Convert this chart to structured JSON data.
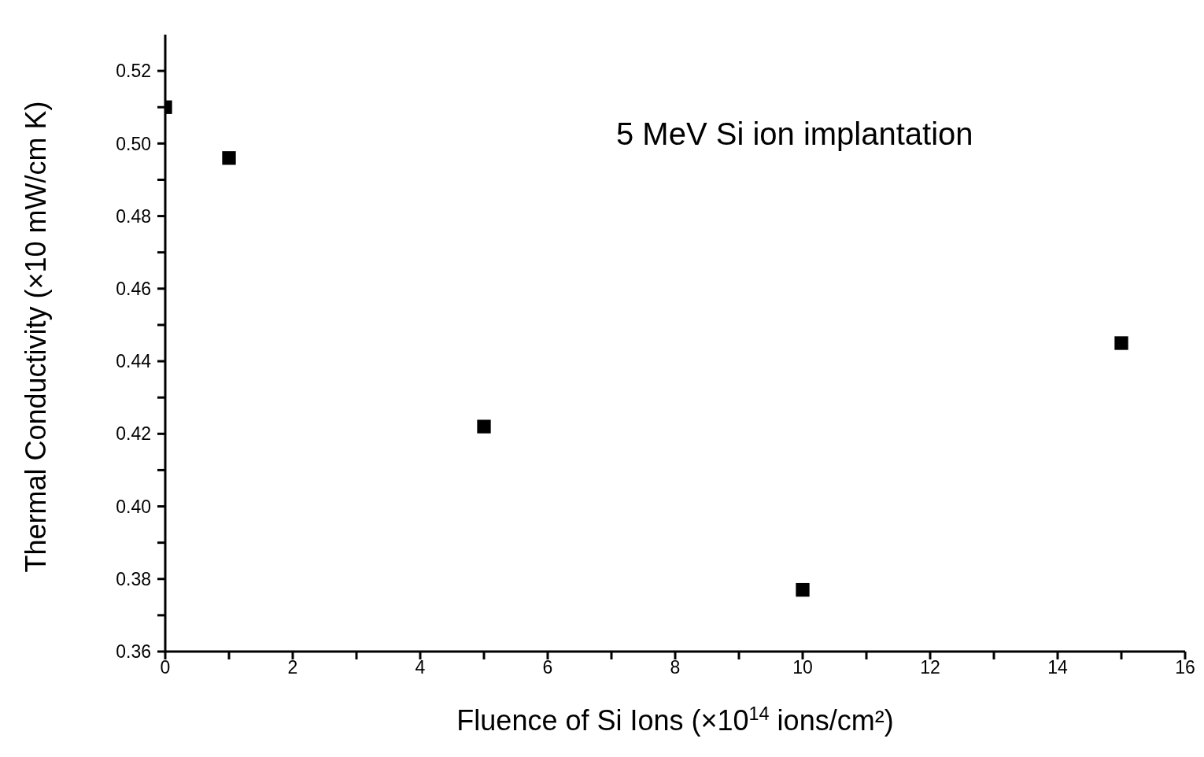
{
  "chart_data": {
    "type": "scatter",
    "xlabel": "Fluence of Si Ions (×10$^{14}$ ions/cm²)",
    "ylabel": "Thermal Conductivity (×10 mW/cm K)",
    "annotations": [
      "5 MeV Si ion implantation"
    ],
    "x": [
      0,
      1,
      5,
      10,
      15
    ],
    "series": [
      {
        "color": "#000000",
        "values": [
          0.51,
          0.496,
          0.422,
          0.377,
          0.445
        ]
      }
    ],
    "xlim": [
      0,
      16
    ],
    "xticks": [
      0,
      {
        "value": 1,
        "label": null
      },
      2,
      {
        "value": 3,
        "label": null
      },
      4,
      {
        "value": 5,
        "label": null
      },
      6,
      {
        "value": 7,
        "label": null
      },
      8,
      {
        "value": 9,
        "label": null
      },
      10,
      {
        "value": 11,
        "label": null
      },
      12,
      {
        "value": 13,
        "label": null
      },
      14,
      {
        "value": 15,
        "label": null
      },
      16
    ],
    "ylim": [
      0.36,
      0.53
    ],
    "yticks": [
      {
        "value": 0.36,
        "label": "0.36"
      },
      {
        "value": 0.37,
        "label": null
      },
      {
        "value": 0.38,
        "label": "0.38"
      },
      {
        "value": 0.39,
        "label": null
      },
      {
        "value": 0.4,
        "label": "0.40"
      },
      {
        "value": 0.41,
        "label": null
      },
      {
        "value": 0.42,
        "label": "0.42"
      },
      {
        "value": 0.43,
        "label": null
      },
      {
        "value": 0.44,
        "label": "0.44"
      },
      {
        "value": 0.45,
        "label": null
      },
      {
        "value": 0.46,
        "label": "0.46"
      },
      {
        "value": 0.47,
        "label": null
      },
      {
        "value": 0.48,
        "label": "0.48"
      },
      {
        "value": 0.49,
        "label": null
      },
      {
        "value": 0.5,
        "label": "0.50"
      },
      {
        "value": 0.51,
        "label": null
      },
      {
        "value": 0.52,
        "label": "0.52"
      }
    ],
    "grid": false,
    "marker": "square"
  }
}
